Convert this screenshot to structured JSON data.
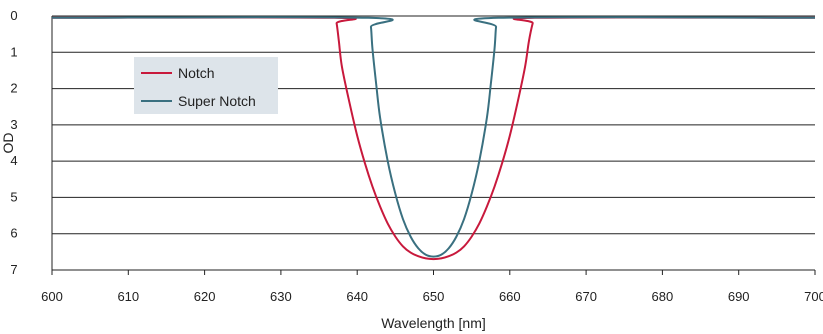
{
  "chart_data": {
    "type": "line",
    "xlabel": "Wavelength [nm]",
    "ylabel": "OD",
    "xlim": [
      600,
      700
    ],
    "ylim": [
      0,
      7
    ],
    "y_inverted": true,
    "x_ticks": [
      600,
      610,
      620,
      630,
      640,
      650,
      660,
      670,
      680,
      690,
      700
    ],
    "x_tick_labels": [
      "600",
      "610",
      "620",
      "630",
      "640",
      "650",
      "660",
      "670",
      "680",
      "690",
      "700"
    ],
    "y_ticks": [
      0,
      1,
      2,
      3,
      4,
      5,
      6,
      7
    ],
    "y_tick_labels": [
      "0",
      "1",
      "2",
      "3",
      "4",
      "5",
      "6",
      "7"
    ],
    "grid": "horizontal",
    "legend_position": "upper-left",
    "series": [
      {
        "name": "Notch",
        "color": "#c8193c",
        "x": [
          600,
          637,
          637.3,
          637.6,
          638,
          639,
          640,
          641,
          642,
          643,
          644,
          645,
          646,
          647,
          648,
          649,
          650,
          651,
          652,
          653,
          654,
          655,
          656,
          657,
          658,
          659,
          660,
          661,
          662,
          662.5,
          663,
          663.3,
          700
        ],
        "values": [
          0.05,
          0.05,
          0.2,
          0.7,
          1.4,
          2.4,
          3.3,
          4.05,
          4.7,
          5.25,
          5.72,
          6.08,
          6.35,
          6.52,
          6.62,
          6.68,
          6.7,
          6.68,
          6.62,
          6.52,
          6.35,
          6.08,
          5.72,
          5.25,
          4.7,
          4.05,
          3.3,
          2.4,
          1.4,
          0.7,
          0.2,
          0.05,
          0.05
        ]
      },
      {
        "name": "Super Notch",
        "color": "#3a7080",
        "x": [
          600,
          641.5,
          641.8,
          642,
          642.5,
          643,
          644,
          645,
          646,
          647,
          648,
          649,
          650,
          651,
          652,
          653,
          654,
          655,
          656,
          657,
          657.5,
          658,
          658.2,
          658.5,
          700
        ],
        "values": [
          0.05,
          0.05,
          0.3,
          0.9,
          1.9,
          2.8,
          4.0,
          4.9,
          5.6,
          6.08,
          6.4,
          6.58,
          6.63,
          6.58,
          6.4,
          6.08,
          5.6,
          4.9,
          4.0,
          2.8,
          1.9,
          0.9,
          0.3,
          0.05,
          0.05
        ]
      }
    ]
  },
  "legend": {
    "background": "#dde4ea"
  }
}
